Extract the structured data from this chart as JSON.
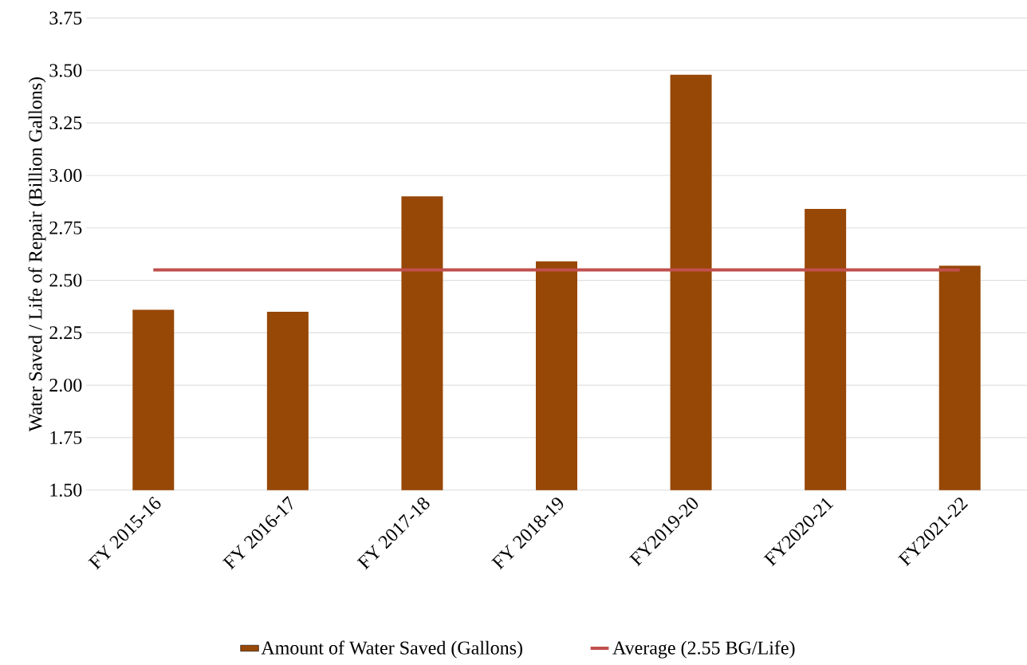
{
  "chart_data": {
    "type": "bar",
    "ylabel": "Water Saved / Life of Repair (Billion Gallons)",
    "categories": [
      "FY 2015-16",
      "FY 2016-17",
      "FY 2017-18",
      "FY 2018-19",
      "FY2019-20",
      "FY2020-21",
      "FY2021-22"
    ],
    "series": [
      {
        "name": "Amount of Water Saved (Gallons)",
        "color": "#974706",
        "values": [
          2.36,
          2.35,
          2.9,
          2.59,
          3.48,
          2.84,
          2.57
        ]
      },
      {
        "name": "Average (2.55 BG/Life)",
        "type": "line",
        "color": "#c0504d",
        "values": [
          2.55,
          2.55,
          2.55,
          2.55,
          2.55,
          2.55,
          2.55
        ]
      }
    ],
    "ylim": [
      1.5,
      3.75
    ],
    "yticks": [
      {
        "value": 1.5,
        "label": "1.50"
      },
      {
        "value": 1.75,
        "label": "1.75"
      },
      {
        "value": 2.0,
        "label": "2.00"
      },
      {
        "value": 2.25,
        "label": "2.25"
      },
      {
        "value": 2.5,
        "label": "2.50"
      },
      {
        "value": 2.75,
        "label": "2.75"
      },
      {
        "value": 3.0,
        "label": "3.00"
      },
      {
        "value": 3.25,
        "label": "3.25"
      },
      {
        "value": 3.5,
        "label": "3.50"
      },
      {
        "value": 3.75,
        "label": "3.75"
      }
    ],
    "grid": "y",
    "legend": "bottom"
  }
}
